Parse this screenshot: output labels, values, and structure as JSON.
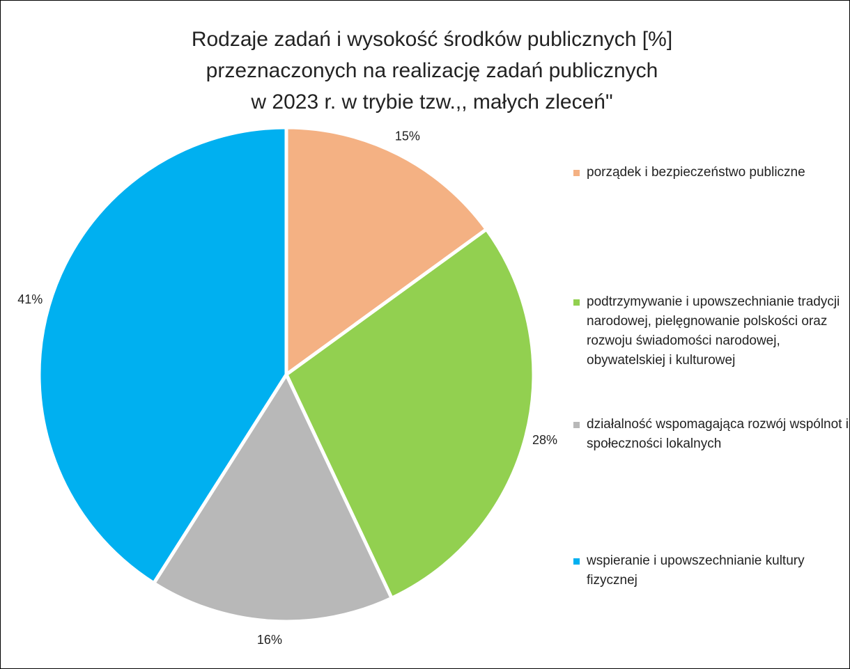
{
  "chart_data": {
    "type": "pie",
    "title": [
      "Rodzaje zadań i wysokość środków publicznych [%]",
      "przeznaczonych na realizację zadań publicznych",
      "w 2023 r. w trybie tzw.,, małych zleceń\""
    ],
    "categories": [
      "porządek i bezpieczeństwo publiczne",
      "podtrzymywanie i upowszechnianie tradycji narodowej, pielęgnowanie polskości oraz rozwoju świadomości narodowej, obywatelskiej i kulturowej",
      "działalność wspomagająca rozwój wspólnot i społeczności lokalnych",
      "wspieranie i upowszechnianie kultury fizycznej"
    ],
    "values": [
      15,
      28,
      16,
      41
    ],
    "value_labels": [
      "15%",
      "28%",
      "16%",
      "41%"
    ],
    "colors": [
      "#f4b183",
      "#92d050",
      "#b8b8b8",
      "#00b0f0"
    ],
    "legend": "right"
  }
}
